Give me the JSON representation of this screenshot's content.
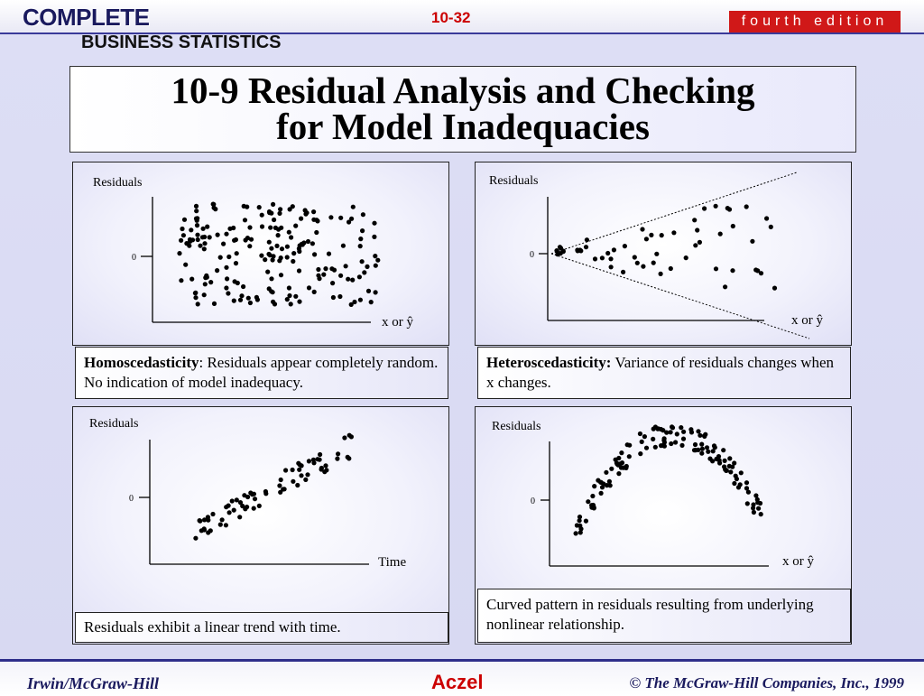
{
  "header": {
    "logo_line1": "COMPLETE",
    "logo_line2": "BUSINESS STATISTICS",
    "slide_number": "10-32",
    "edition": "fourth edition"
  },
  "title": {
    "line1": "10-9  Residual Analysis and Checking",
    "line2": "for Model Inadequacies"
  },
  "panels": {
    "homoscedastic": {
      "ylabel": "Residuals",
      "zero_tick": "0",
      "xlabel": "x or ŷ",
      "caption_bold": "Homoscedasticity",
      "caption_text": ": Residuals appear completely random.  No indication of model inadequacy."
    },
    "heteroscedastic": {
      "ylabel": "Residuals",
      "zero_tick": "0",
      "xlabel": "x or ŷ",
      "caption_bold": "Heteroscedasticity:",
      "caption_text": " Variance of residuals changes when x changes."
    },
    "trend": {
      "ylabel": "Residuals",
      "zero_tick": "0",
      "xlabel": "Time",
      "caption_text": "Residuals exhibit a linear trend with time."
    },
    "curved": {
      "ylabel": "Residuals",
      "zero_tick": "0",
      "xlabel": "x or ŷ",
      "caption_text": "Curved pattern in residuals resulting from underlying nonlinear relationship."
    }
  },
  "footer": {
    "left": "Irwin/McGraw-Hill",
    "center": "Aczel",
    "right": "© The McGraw-Hill Companies, Inc., 1999"
  },
  "colors": {
    "accent_red": "#cc0000",
    "navy": "#1a1a5e",
    "content_background": "#dddef5"
  }
}
